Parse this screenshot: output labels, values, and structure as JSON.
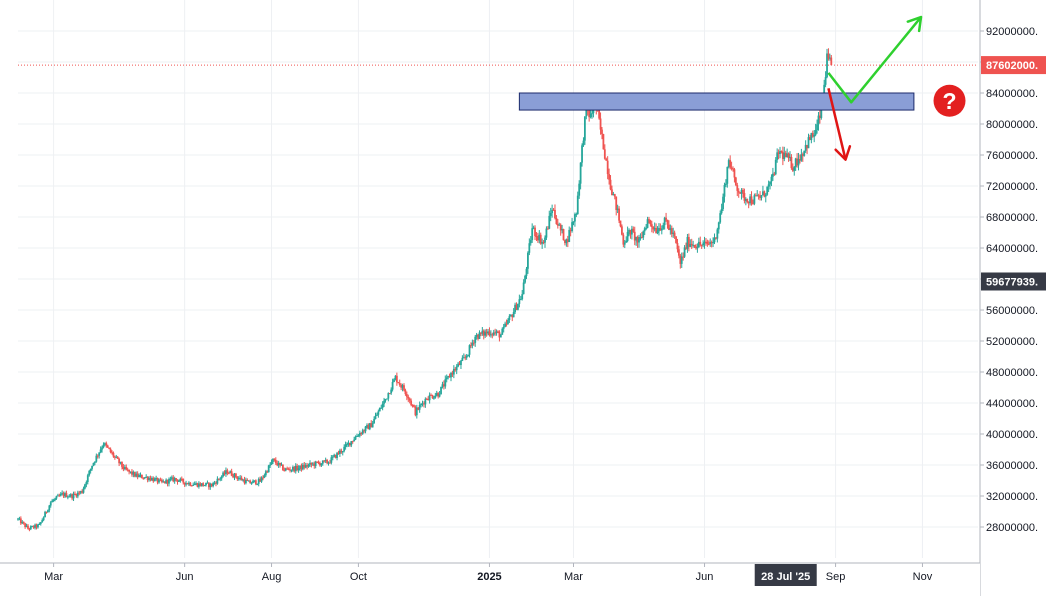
{
  "chart_data": {
    "type": "candlestick",
    "title": "",
    "xlabel": "",
    "ylabel": "",
    "ylim": [
      24000000,
      96000000
    ],
    "y_ticks": [
      28000000,
      32000000,
      36000000,
      40000000,
      44000000,
      48000000,
      52000000,
      56000000,
      60000000,
      64000000,
      68000000,
      72000000,
      76000000,
      80000000,
      84000000,
      88000000,
      92000000
    ],
    "y_tick_labels": [
      "28000000.",
      "32000000.",
      "36000000.",
      "40000000.",
      "44000000.",
      "48000000.",
      "52000000.",
      "56000000.",
      "60000000.",
      "64000000.",
      "68000000.",
      "72000000.",
      "76000000.",
      "80000000.",
      "84000000.",
      "88000000.",
      "92000000."
    ],
    "x_range": [
      "2024-02-05",
      "2025-12-10"
    ],
    "x_ticks": [
      {
        "date": "2024-03-01",
        "label": "Mar",
        "bold": false
      },
      {
        "date": "2024-06-01",
        "label": "Jun",
        "bold": false
      },
      {
        "date": "2024-08-01",
        "label": "Aug",
        "bold": false
      },
      {
        "date": "2024-10-01",
        "label": "Oct",
        "bold": false
      },
      {
        "date": "2025-01-01",
        "label": "2025",
        "bold": true
      },
      {
        "date": "2025-03-01",
        "label": "Mar",
        "bold": false
      },
      {
        "date": "2025-06-01",
        "label": "Jun",
        "bold": false
      },
      {
        "date": "2025-09-01",
        "label": "Sep",
        "bold": false
      },
      {
        "date": "2025-11-01",
        "label": "Nov",
        "bold": false
      }
    ],
    "crosshair_x": {
      "date": "2025-07-28",
      "label": "28 Jul '25"
    },
    "last_price": {
      "value": 87602000,
      "label": "87602000.",
      "color": "#ef5350"
    },
    "crosshair_price": {
      "value": 59677939,
      "label": "59677939.",
      "color": "#363a45"
    },
    "resistance_zone": {
      "from": "2025-01-22",
      "to": "2025-10-26",
      "low": 81800000,
      "high": 84000000,
      "fill": "#8a9ed6",
      "stroke": "#1c2a6b"
    },
    "up_color": "#26a69a",
    "down_color": "#ef5350",
    "arrows": [
      {
        "color": "#2fd02f",
        "points": [
          [
            "2025-08-27",
            86600000
          ],
          [
            "2025-09-12",
            82800000
          ],
          [
            "2025-10-31",
            93800000
          ]
        ]
      },
      {
        "color": "#e01515",
        "points": [
          [
            "2025-08-27",
            84600000
          ],
          [
            "2025-09-08",
            75400000
          ]
        ]
      }
    ],
    "question_badge": {
      "date": "2025-11-20",
      "value": 83000000,
      "color": "#e32020",
      "glyph": "?"
    },
    "anchors": [
      [
        "2024-02-05",
        29000000
      ],
      [
        "2024-02-12",
        27800000
      ],
      [
        "2024-02-20",
        28200000
      ],
      [
        "2024-02-28",
        31200000
      ],
      [
        "2024-03-07",
        32200000
      ],
      [
        "2024-03-14",
        32000000
      ],
      [
        "2024-03-21",
        32600000
      ],
      [
        "2024-03-28",
        36000000
      ],
      [
        "2024-04-05",
        38800000
      ],
      [
        "2024-04-12",
        37200000
      ],
      [
        "2024-04-20",
        35400000
      ],
      [
        "2024-04-28",
        34600000
      ],
      [
        "2024-05-08",
        34300000
      ],
      [
        "2024-05-16",
        33700000
      ],
      [
        "2024-05-25",
        34200000
      ],
      [
        "2024-06-02",
        33700000
      ],
      [
        "2024-06-10",
        33500000
      ],
      [
        "2024-06-20",
        33400000
      ],
      [
        "2024-07-01",
        35200000
      ],
      [
        "2024-07-08",
        34400000
      ],
      [
        "2024-07-16",
        33700000
      ],
      [
        "2024-07-24",
        33900000
      ],
      [
        "2024-08-02",
        36600000
      ],
      [
        "2024-08-10",
        35400000
      ],
      [
        "2024-08-20",
        35600000
      ],
      [
        "2024-08-30",
        36100000
      ],
      [
        "2024-09-10",
        36400000
      ],
      [
        "2024-09-20",
        38000000
      ],
      [
        "2024-10-01",
        40000000
      ],
      [
        "2024-10-10",
        41200000
      ],
      [
        "2024-10-20",
        44500000
      ],
      [
        "2024-10-27",
        47300000
      ],
      [
        "2024-11-04",
        45200000
      ],
      [
        "2024-11-10",
        42800000
      ],
      [
        "2024-11-18",
        44700000
      ],
      [
        "2024-11-26",
        45200000
      ],
      [
        "2024-12-05",
        47800000
      ],
      [
        "2024-12-15",
        49800000
      ],
      [
        "2024-12-22",
        52600000
      ],
      [
        "2025-01-01",
        53200000
      ],
      [
        "2025-01-09",
        52800000
      ],
      [
        "2025-01-17",
        55500000
      ],
      [
        "2025-01-24",
        58000000
      ],
      [
        "2025-01-31",
        66500000
      ],
      [
        "2025-02-08",
        64600000
      ],
      [
        "2025-02-14",
        69200000
      ],
      [
        "2025-02-19",
        66600000
      ],
      [
        "2025-02-24",
        64800000
      ],
      [
        "2025-03-03",
        68800000
      ],
      [
        "2025-03-07",
        76800000
      ],
      [
        "2025-03-10",
        82200000
      ],
      [
        "2025-03-13",
        80800000
      ],
      [
        "2025-03-16",
        83000000
      ],
      [
        "2025-03-19",
        80200000
      ],
      [
        "2025-03-23",
        76200000
      ],
      [
        "2025-03-27",
        72200000
      ],
      [
        "2025-04-01",
        68600000
      ],
      [
        "2025-04-05",
        64800000
      ],
      [
        "2025-04-10",
        66200000
      ],
      [
        "2025-04-16",
        64600000
      ],
      [
        "2025-04-22",
        67600000
      ],
      [
        "2025-04-28",
        66400000
      ],
      [
        "2025-05-05",
        67400000
      ],
      [
        "2025-05-11",
        65200000
      ],
      [
        "2025-05-15",
        62000000
      ],
      [
        "2025-05-20",
        64800000
      ],
      [
        "2025-05-27",
        64400000
      ],
      [
        "2025-06-02",
        64400000
      ],
      [
        "2025-06-08",
        65000000
      ],
      [
        "2025-06-13",
        69200000
      ],
      [
        "2025-06-18",
        75500000
      ],
      [
        "2025-06-23",
        72200000
      ],
      [
        "2025-06-28",
        70600000
      ],
      [
        "2025-07-05",
        70200000
      ],
      [
        "2025-07-12",
        70800000
      ],
      [
        "2025-07-18",
        72500000
      ],
      [
        "2025-07-23",
        76400000
      ],
      [
        "2025-07-28",
        75800000
      ],
      [
        "2025-08-02",
        74600000
      ],
      [
        "2025-08-07",
        75800000
      ],
      [
        "2025-08-13",
        77800000
      ],
      [
        "2025-08-18",
        79000000
      ],
      [
        "2025-08-22",
        81800000
      ],
      [
        "2025-08-26",
        88300000
      ],
      [
        "2025-08-29",
        87600000
      ]
    ]
  }
}
